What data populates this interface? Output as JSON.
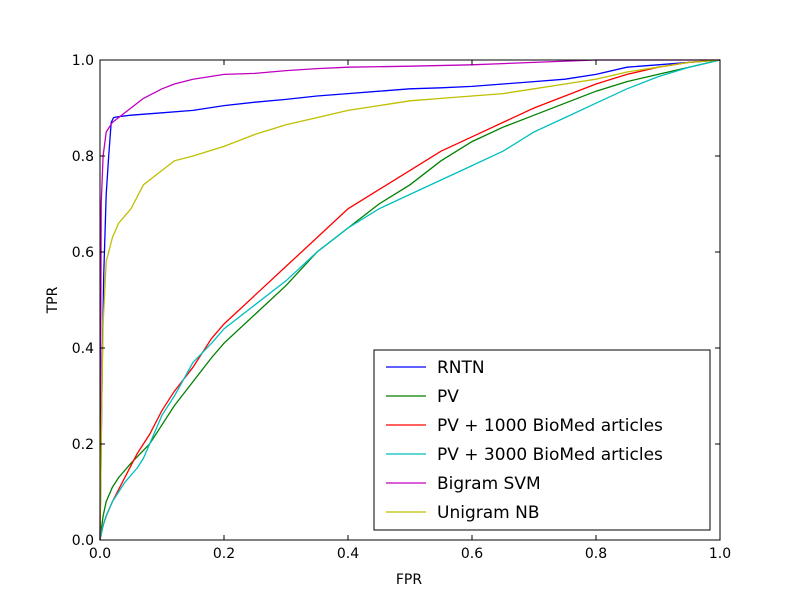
{
  "chart_data": {
    "type": "line",
    "title": "",
    "xlabel": "FPR",
    "ylabel": "TPR",
    "xlim": [
      0.0,
      1.0
    ],
    "ylim": [
      0.0,
      1.0
    ],
    "xticks": [
      "0.0",
      "0.2",
      "0.4",
      "0.6",
      "0.8",
      "1.0"
    ],
    "yticks": [
      "0.0",
      "0.2",
      "0.4",
      "0.6",
      "0.8",
      "1.0"
    ],
    "grid": false,
    "legend_position": "lower-right",
    "series": [
      {
        "name": "RNTN",
        "color": "#0000ff",
        "x": [
          0.0,
          0.002,
          0.004,
          0.006,
          0.01,
          0.014,
          0.018,
          0.022,
          0.03,
          0.05,
          0.1,
          0.15,
          0.2,
          0.25,
          0.3,
          0.35,
          0.4,
          0.45,
          0.5,
          0.55,
          0.6,
          0.65,
          0.7,
          0.75,
          0.8,
          0.85,
          0.9,
          0.95,
          1.0
        ],
        "y": [
          0.0,
          0.2,
          0.4,
          0.55,
          0.72,
          0.8,
          0.87,
          0.88,
          0.882,
          0.885,
          0.89,
          0.895,
          0.905,
          0.912,
          0.918,
          0.925,
          0.93,
          0.935,
          0.94,
          0.942,
          0.945,
          0.95,
          0.955,
          0.96,
          0.97,
          0.985,
          0.99,
          0.995,
          1.0
        ]
      },
      {
        "name": "PV",
        "color": "#008000",
        "x": [
          0.0,
          0.005,
          0.01,
          0.02,
          0.03,
          0.05,
          0.08,
          0.1,
          0.12,
          0.15,
          0.18,
          0.2,
          0.25,
          0.3,
          0.35,
          0.4,
          0.45,
          0.5,
          0.55,
          0.6,
          0.65,
          0.7,
          0.75,
          0.8,
          0.85,
          0.9,
          0.95,
          1.0
        ],
        "y": [
          0.0,
          0.05,
          0.08,
          0.11,
          0.13,
          0.16,
          0.2,
          0.24,
          0.28,
          0.33,
          0.38,
          0.41,
          0.47,
          0.53,
          0.6,
          0.65,
          0.7,
          0.74,
          0.79,
          0.83,
          0.86,
          0.885,
          0.91,
          0.935,
          0.955,
          0.97,
          0.985,
          1.0
        ]
      },
      {
        "name": "PV + 1000 BioMed articles",
        "color": "#ff0000",
        "x": [
          0.0,
          0.005,
          0.01,
          0.02,
          0.04,
          0.06,
          0.08,
          0.1,
          0.12,
          0.15,
          0.18,
          0.2,
          0.25,
          0.3,
          0.35,
          0.4,
          0.45,
          0.5,
          0.55,
          0.6,
          0.65,
          0.7,
          0.75,
          0.8,
          0.85,
          0.9,
          0.95,
          1.0
        ],
        "y": [
          0.0,
          0.03,
          0.05,
          0.08,
          0.13,
          0.18,
          0.22,
          0.27,
          0.31,
          0.36,
          0.42,
          0.45,
          0.51,
          0.57,
          0.63,
          0.69,
          0.73,
          0.77,
          0.81,
          0.84,
          0.87,
          0.9,
          0.925,
          0.95,
          0.97,
          0.985,
          0.995,
          1.0
        ]
      },
      {
        "name": "PV + 3000 BioMed articles",
        "color": "#00bfbf",
        "x": [
          0.0,
          0.005,
          0.01,
          0.02,
          0.04,
          0.06,
          0.07,
          0.08,
          0.1,
          0.12,
          0.15,
          0.18,
          0.2,
          0.25,
          0.3,
          0.35,
          0.4,
          0.45,
          0.5,
          0.55,
          0.6,
          0.65,
          0.7,
          0.75,
          0.8,
          0.85,
          0.9,
          0.95,
          1.0
        ],
        "y": [
          0.0,
          0.03,
          0.05,
          0.08,
          0.12,
          0.15,
          0.17,
          0.2,
          0.26,
          0.3,
          0.37,
          0.41,
          0.44,
          0.49,
          0.54,
          0.6,
          0.65,
          0.69,
          0.72,
          0.75,
          0.78,
          0.81,
          0.85,
          0.88,
          0.91,
          0.94,
          0.965,
          0.985,
          1.0
        ]
      },
      {
        "name": "Bigram SVM",
        "color": "#bf00bf",
        "x": [
          0.0,
          0.002,
          0.005,
          0.01,
          0.02,
          0.03,
          0.05,
          0.07,
          0.1,
          0.12,
          0.15,
          0.2,
          0.25,
          0.3,
          0.35,
          0.4,
          0.5,
          0.6,
          0.7,
          0.8,
          0.9,
          1.0
        ],
        "y": [
          0.0,
          0.7,
          0.8,
          0.85,
          0.87,
          0.88,
          0.9,
          0.92,
          0.94,
          0.95,
          0.96,
          0.97,
          0.972,
          0.978,
          0.982,
          0.985,
          0.987,
          0.99,
          0.995,
          1.0,
          1.0,
          1.0
        ]
      },
      {
        "name": "Unigram NB",
        "color": "#bfbf00",
        "x": [
          0.0,
          0.003,
          0.005,
          0.01,
          0.02,
          0.03,
          0.05,
          0.07,
          0.1,
          0.12,
          0.15,
          0.2,
          0.25,
          0.3,
          0.35,
          0.4,
          0.45,
          0.5,
          0.55,
          0.6,
          0.65,
          0.7,
          0.75,
          0.8,
          0.85,
          0.9,
          0.95,
          1.0
        ],
        "y": [
          0.0,
          0.3,
          0.45,
          0.58,
          0.63,
          0.66,
          0.69,
          0.74,
          0.77,
          0.79,
          0.8,
          0.82,
          0.845,
          0.865,
          0.88,
          0.895,
          0.905,
          0.915,
          0.92,
          0.925,
          0.93,
          0.94,
          0.95,
          0.96,
          0.975,
          0.985,
          0.995,
          1.0
        ]
      }
    ]
  }
}
